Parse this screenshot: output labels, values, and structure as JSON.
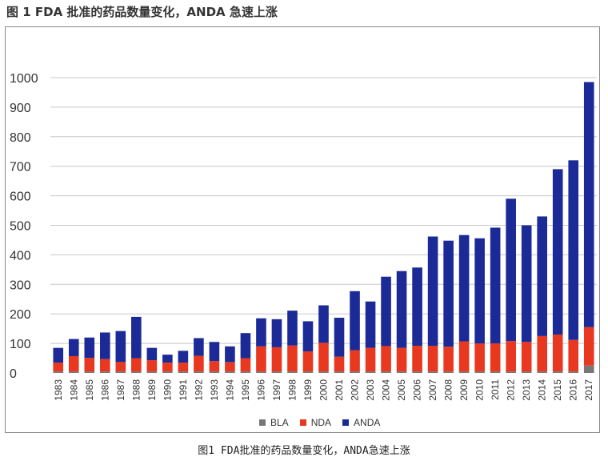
{
  "top_title": "图 1   FDA 批准的药品数量变化，ANDA 急速上涨",
  "caption": "图1 FDA批准的药品数量变化，ANDA急速上涨",
  "colors": {
    "BLA": "#777777",
    "NDA": "#e8381f",
    "ANDA": "#1b2a96",
    "grid": "#c8c8c8"
  },
  "chart_data": {
    "type": "bar",
    "stacked": true,
    "categories": [
      "1983",
      "1984",
      "1985",
      "1986",
      "1987",
      "1988",
      "1989",
      "1990",
      "1991",
      "1992",
      "1993",
      "1994",
      "1995",
      "1996",
      "1997",
      "1998",
      "1999",
      "2000",
      "2001",
      "2002",
      "2003",
      "2004",
      "2005",
      "2006",
      "2007",
      "2008",
      "2009",
      "2010",
      "2011",
      "2012",
      "2013",
      "2014",
      "2015",
      "2016",
      "2017"
    ],
    "series": [
      {
        "name": "BLA",
        "values": [
          5,
          5,
          5,
          5,
          5,
          5,
          5,
          5,
          5,
          5,
          5,
          5,
          5,
          5,
          5,
          5,
          5,
          5,
          5,
          5,
          5,
          5,
          5,
          5,
          5,
          5,
          5,
          5,
          5,
          5,
          5,
          5,
          5,
          5,
          25
        ]
      },
      {
        "name": "NDA",
        "values": [
          30,
          52,
          46,
          42,
          32,
          45,
          38,
          30,
          30,
          53,
          35,
          32,
          45,
          85,
          82,
          88,
          68,
          97,
          50,
          72,
          80,
          86,
          80,
          87,
          87,
          84,
          102,
          95,
          95,
          103,
          100,
          120,
          125,
          107,
          130
        ]
      },
      {
        "name": "ANDA",
        "values": [
          50,
          58,
          69,
          90,
          105,
          140,
          42,
          27,
          40,
          60,
          65,
          53,
          85,
          95,
          95,
          118,
          102,
          127,
          132,
          200,
          157,
          235,
          260,
          265,
          370,
          359,
          360,
          356,
          392,
          482,
          395,
          405,
          560,
          608,
          830
        ]
      }
    ],
    "ylim": [
      0,
      1000
    ],
    "yticks": [
      0,
      100,
      200,
      300,
      400,
      500,
      600,
      700,
      800,
      900,
      1000
    ],
    "grid": true,
    "legend_position": "bottom"
  }
}
